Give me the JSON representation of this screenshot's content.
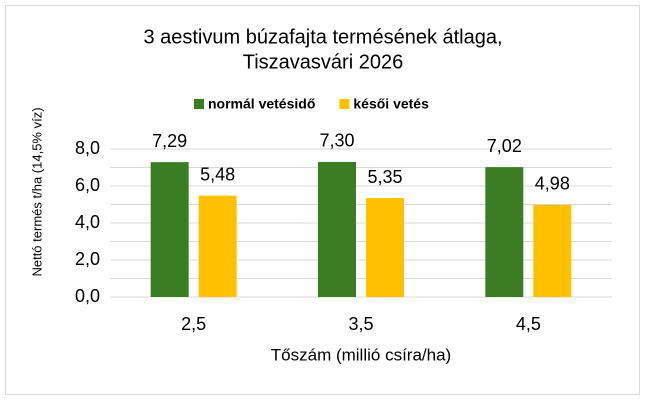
{
  "chart_data": {
    "type": "bar",
    "title": "3 aestivum búzafajta termésének átlaga,",
    "subtitle": "Tiszavasvári 2026",
    "x_label": "Tőszám (millió csíra/ha)",
    "y_label": "Nettó termés t/ha (14,5% víz)",
    "categories": [
      "2,5",
      "3,5",
      "4,5"
    ],
    "series": [
      {
        "name": "normál vetésidő",
        "color": "#3a7d22",
        "values": [
          7.29,
          7.3,
          7.02
        ],
        "value_labels": [
          "7,29",
          "7,30",
          "7,02"
        ]
      },
      {
        "name": "késői vetés",
        "color": "#ffc000",
        "values": [
          5.48,
          5.35,
          4.98
        ],
        "value_labels": [
          "5,48",
          "5,35",
          "4,98"
        ]
      }
    ],
    "ylim": [
      0,
      8
    ],
    "yticks": [
      {
        "value": 0,
        "label": "0,0"
      },
      {
        "value": 2,
        "label": "2,0"
      },
      {
        "value": 4,
        "label": "4,0"
      },
      {
        "value": 6,
        "label": "6,0"
      },
      {
        "value": 8,
        "label": "8,0"
      }
    ],
    "minor_yticks": [
      1,
      3,
      5,
      7
    ],
    "grid": true,
    "legend": "top"
  }
}
